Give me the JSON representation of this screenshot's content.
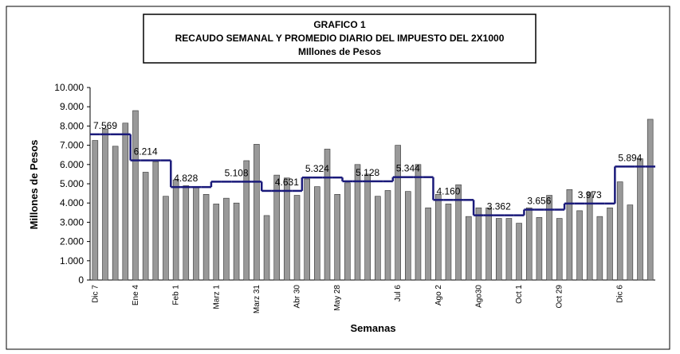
{
  "chart_data": {
    "type": "bar_step",
    "title": [
      "GRAFICO 1",
      "RECAUDO SEMANAL Y PROMEDIO DIARIO DEL IMPUESTO DEL 2X1000",
      "MIllones de Pesos"
    ],
    "x_label": "Semanas",
    "y_label": "Millones de Pesos",
    "categories": [
      "Dic 7",
      null,
      null,
      null,
      "Ene 4",
      null,
      null,
      null,
      "Feb 1",
      null,
      null,
      null,
      "Marz 1",
      null,
      null,
      null,
      "Marz 31",
      null,
      null,
      null,
      "Abr 30",
      null,
      null,
      null,
      "May 28",
      null,
      null,
      null,
      null,
      null,
      "Jul 6",
      null,
      null,
      null,
      "Ago 2",
      null,
      null,
      null,
      "Ago30",
      null,
      null,
      null,
      "Oct 1",
      null,
      null,
      null,
      "Oct 29",
      null,
      null,
      null,
      null,
      null,
      "Dic 6",
      null,
      null,
      null
    ],
    "series": [
      {
        "type": "bar",
        "color": "#999999",
        "values": [
          7250,
          7850,
          6950,
          8150,
          8800,
          5600,
          6150,
          4350,
          5200,
          4900,
          4800,
          4450,
          3950,
          4250,
          4000,
          6200,
          7050,
          3350,
          5450,
          5300,
          4400,
          5250,
          4850,
          6800,
          4450,
          5050,
          6000,
          5500,
          4350,
          4650,
          7000,
          4600,
          6000,
          3750,
          4450,
          3950,
          4950,
          3300,
          3750,
          3750,
          3200,
          3200,
          2950,
          3750,
          3250,
          4400,
          3200,
          4700,
          3600,
          4550,
          3300,
          3750,
          5100,
          3900,
          6300,
          8350
        ]
      },
      {
        "type": "step",
        "color": "#1a1a7a",
        "values": [
          7569,
          7569,
          7569,
          7569,
          6214,
          6214,
          6214,
          6214,
          4828,
          4828,
          4828,
          4828,
          5108,
          5108,
          5108,
          5108,
          5108,
          4631,
          4631,
          4631,
          4631,
          5324,
          5324,
          5324,
          5324,
          5128,
          5128,
          5128,
          5128,
          5128,
          5344,
          5344,
          5344,
          5344,
          4160,
          4160,
          4160,
          4160,
          3362,
          3362,
          3362,
          3362,
          3362,
          3656,
          3656,
          3656,
          3656,
          3973,
          3973,
          3973,
          3973,
          3973,
          5894,
          5894,
          5894,
          5894
        ],
        "value_labels": [
          null,
          "7.569",
          null,
          null,
          null,
          "6.214",
          null,
          null,
          null,
          "4.828",
          null,
          null,
          null,
          null,
          "5.108",
          null,
          null,
          null,
          null,
          "4.631",
          null,
          null,
          "5.324",
          null,
          null,
          null,
          null,
          "5.128",
          null,
          null,
          null,
          "5.344",
          null,
          null,
          null,
          "4.160",
          null,
          null,
          null,
          null,
          "3.362",
          null,
          null,
          null,
          "3.656",
          null,
          null,
          null,
          null,
          "3.973",
          null,
          null,
          null,
          "5.894",
          null,
          null
        ]
      }
    ],
    "ylim": [
      0,
      10000
    ],
    "yticks": [
      0,
      {
        "value": 1000,
        "label": "1.000"
      },
      {
        "value": 2000,
        "label": "2.000"
      },
      {
        "value": 3000,
        "label": "3.000"
      },
      {
        "value": 4000,
        "label": "4.000"
      },
      {
        "value": 5000,
        "label": "5.000"
      },
      {
        "value": 6000,
        "label": "6.000"
      },
      {
        "value": 7000,
        "label": "7.000"
      },
      {
        "value": 8000,
        "label": "8.000"
      },
      {
        "value": 9000,
        "label": "9.000"
      },
      {
        "value": 10000,
        "label": "10.000"
      }
    ]
  }
}
